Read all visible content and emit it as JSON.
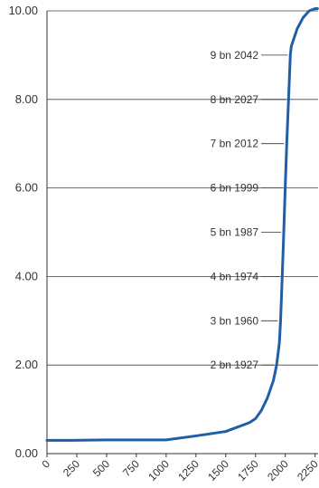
{
  "chart_data": {
    "type": "line",
    "title": "",
    "xlabel": "",
    "ylabel": "",
    "xlim": [
      0,
      2275
    ],
    "ylim": [
      0,
      10.0
    ],
    "grid": "horizontal",
    "line_color": "#1f5fa5",
    "x_ticks": [
      0,
      250,
      500,
      750,
      1000,
      1250,
      1500,
      1750,
      2000,
      2250
    ],
    "x_tick_labels": [
      "0",
      "250",
      "500",
      "750",
      "1000",
      "1250",
      "1500",
      "1750",
      "2000",
      "2250"
    ],
    "y_ticks": [
      0,
      2,
      4,
      6,
      8,
      10
    ],
    "y_tick_labels": [
      "0.00",
      "2.00",
      "4.00",
      "6.00",
      "8.00",
      "10.00"
    ],
    "series": [
      {
        "x": [
          0,
          200,
          500,
          800,
          1000,
          1250,
          1500,
          1600,
          1700,
          1750,
          1800,
          1850,
          1900,
          1927,
          1950,
          1960,
          1974,
          1987,
          1999,
          2012,
          2027,
          2042,
          2050,
          2100,
          2150,
          2200,
          2250,
          2270
        ],
        "y": [
          0.3,
          0.3,
          0.31,
          0.31,
          0.31,
          0.4,
          0.5,
          0.6,
          0.7,
          0.79,
          0.98,
          1.26,
          1.65,
          2.0,
          2.5,
          3.0,
          4.0,
          5.0,
          6.0,
          7.0,
          8.0,
          9.0,
          9.2,
          9.6,
          9.85,
          10.0,
          10.05,
          10.05
        ]
      }
    ],
    "annotations": [
      {
        "text": "9 bn 2042",
        "x": 2042,
        "y": 9
      },
      {
        "text": "8 bn 2027",
        "x": 2027,
        "y": 8
      },
      {
        "text": "7 bn 2012",
        "x": 2012,
        "y": 7
      },
      {
        "text": "6 bn 1999",
        "x": 1999,
        "y": 6
      },
      {
        "text": "5 bn 1987",
        "x": 1987,
        "y": 5
      },
      {
        "text": "4 bn 1974",
        "x": 1974,
        "y": 4
      },
      {
        "text": "3 bn 1960",
        "x": 1960,
        "y": 3
      },
      {
        "text": "2 bn 1927",
        "x": 1927,
        "y": 2
      }
    ]
  }
}
